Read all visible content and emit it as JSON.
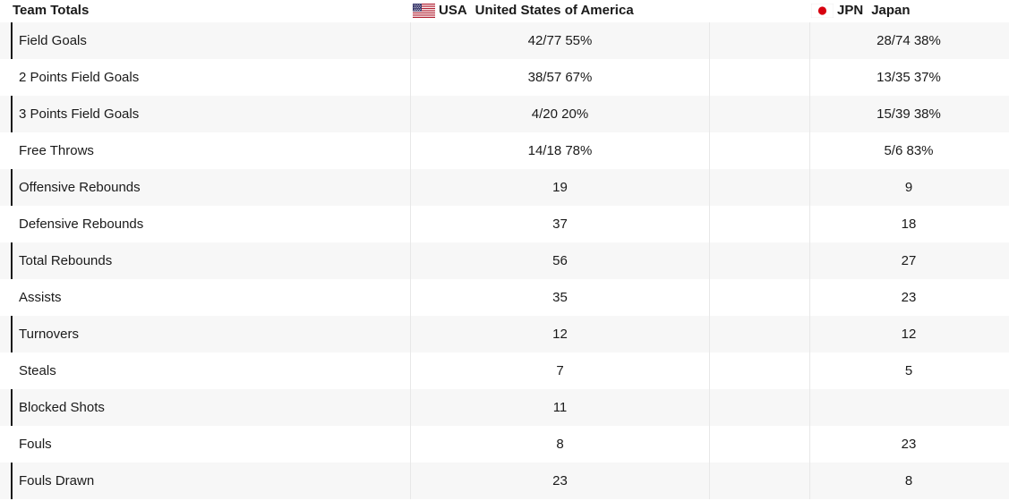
{
  "header": {
    "title": "Team Totals",
    "teams": [
      {
        "code": "USA",
        "name": "United States of America",
        "flag_icon": "us-flag-icon"
      },
      {
        "code": "JPN",
        "name": "Japan",
        "flag_icon": "japan-flag-icon"
      }
    ]
  },
  "rows": [
    {
      "label": "Field Goals",
      "usa": "42/77 55%",
      "jpn": "28/74 38%",
      "accent_bar": true
    },
    {
      "label": "2 Points Field Goals",
      "usa": "38/57 67%",
      "jpn": "13/35 37%",
      "accent_bar": false
    },
    {
      "label": "3 Points Field Goals",
      "usa": "4/20 20%",
      "jpn": "15/39 38%",
      "accent_bar": true
    },
    {
      "label": "Free Throws",
      "usa": "14/18 78%",
      "jpn": "5/6 83%",
      "accent_bar": false
    },
    {
      "label": "Offensive Rebounds",
      "usa": "19",
      "jpn": "9",
      "accent_bar": true
    },
    {
      "label": "Defensive Rebounds",
      "usa": "37",
      "jpn": "18",
      "accent_bar": false
    },
    {
      "label": "Total Rebounds",
      "usa": "56",
      "jpn": "27",
      "accent_bar": true
    },
    {
      "label": "Assists",
      "usa": "35",
      "jpn": "23",
      "accent_bar": false
    },
    {
      "label": "Turnovers",
      "usa": "12",
      "jpn": "12",
      "accent_bar": true
    },
    {
      "label": "Steals",
      "usa": "7",
      "jpn": "5",
      "accent_bar": false
    },
    {
      "label": "Blocked Shots",
      "usa": "11",
      "jpn": "",
      "accent_bar": true
    },
    {
      "label": "Fouls",
      "usa": "8",
      "jpn": "23",
      "accent_bar": false
    },
    {
      "label": "Fouls Drawn",
      "usa": "23",
      "jpn": "8",
      "accent_bar": true
    }
  ],
  "colors": {
    "text": "#1a1a1a",
    "row_alt_bg": "#f7f7f7",
    "row_bg": "#ffffff",
    "accent_bar": "#1a1a1a",
    "jp_red": "#d7000f"
  }
}
